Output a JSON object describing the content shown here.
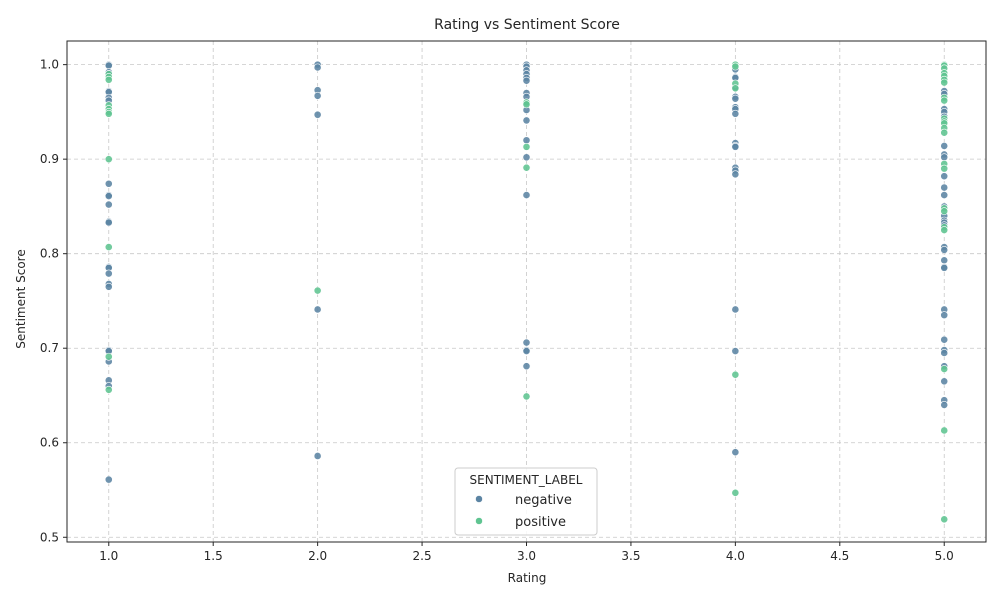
{
  "chart_data": {
    "type": "scatter",
    "title": "Rating vs Sentiment Score",
    "xlabel": "Rating",
    "ylabel": "Sentiment Score",
    "xlim": [
      0.8,
      5.2
    ],
    "ylim": [
      0.495,
      1.025
    ],
    "xticks": [
      "1.0",
      "1.5",
      "2.0",
      "2.5",
      "3.0",
      "3.5",
      "4.0",
      "4.5",
      "5.0"
    ],
    "yticks": [
      "0.5",
      "0.6",
      "0.7",
      "0.8",
      "0.9",
      "1.0"
    ],
    "grid": true,
    "legend": {
      "title": "SENTIMENT_LABEL",
      "placement": "lower-center"
    },
    "series": [
      {
        "name": "negative",
        "color": "#5b84a3",
        "points": [
          [
            1,
            1.0
          ],
          [
            1,
            0.999
          ],
          [
            1,
            0.992
          ],
          [
            1,
            0.99
          ],
          [
            1,
            0.972
          ],
          [
            1,
            0.971
          ],
          [
            1,
            0.965
          ],
          [
            1,
            0.962
          ],
          [
            1,
            0.874
          ],
          [
            1,
            0.862
          ],
          [
            1,
            0.861
          ],
          [
            1,
            0.852
          ],
          [
            1,
            0.834
          ],
          [
            1,
            0.833
          ],
          [
            1,
            0.786
          ],
          [
            1,
            0.785
          ],
          [
            1,
            0.779
          ],
          [
            1,
            0.768
          ],
          [
            1,
            0.765
          ],
          [
            1,
            0.698
          ],
          [
            1,
            0.697
          ],
          [
            1,
            0.686
          ],
          [
            1,
            0.666
          ],
          [
            1,
            0.66
          ],
          [
            1,
            0.561
          ],
          [
            2,
            1.0
          ],
          [
            2,
            0.997
          ],
          [
            2,
            0.973
          ],
          [
            2,
            0.967
          ],
          [
            2,
            0.947
          ],
          [
            2,
            0.741
          ],
          [
            2,
            0.586
          ],
          [
            3,
            1.0
          ],
          [
            3,
            0.998
          ],
          [
            3,
            0.994
          ],
          [
            3,
            0.99
          ],
          [
            3,
            0.986
          ],
          [
            3,
            0.983
          ],
          [
            3,
            0.97
          ],
          [
            3,
            0.966
          ],
          [
            3,
            0.957
          ],
          [
            3,
            0.952
          ],
          [
            3,
            0.941
          ],
          [
            3,
            0.92
          ],
          [
            3,
            0.902
          ],
          [
            3,
            0.862
          ],
          [
            3,
            0.706
          ],
          [
            3,
            0.698
          ],
          [
            3,
            0.697
          ],
          [
            3,
            0.681
          ],
          [
            4,
            0.995
          ],
          [
            4,
            0.987
          ],
          [
            4,
            0.986
          ],
          [
            4,
            0.976
          ],
          [
            4,
            0.966
          ],
          [
            4,
            0.964
          ],
          [
            4,
            0.955
          ],
          [
            4,
            0.953
          ],
          [
            4,
            0.948
          ],
          [
            4,
            0.917
          ],
          [
            4,
            0.914
          ],
          [
            4,
            0.913
          ],
          [
            4,
            0.891
          ],
          [
            4,
            0.888
          ],
          [
            4,
            0.884
          ],
          [
            4,
            0.741
          ],
          [
            4,
            0.697
          ],
          [
            4,
            0.59
          ],
          [
            5,
            0.972
          ],
          [
            5,
            0.969
          ],
          [
            5,
            0.953
          ],
          [
            5,
            0.95
          ],
          [
            5,
            0.945
          ],
          [
            5,
            0.914
          ],
          [
            5,
            0.905
          ],
          [
            5,
            0.902
          ],
          [
            5,
            0.882
          ],
          [
            5,
            0.87
          ],
          [
            5,
            0.862
          ],
          [
            5,
            0.85
          ],
          [
            5,
            0.84
          ],
          [
            5,
            0.835
          ],
          [
            5,
            0.833
          ],
          [
            5,
            0.83
          ],
          [
            5,
            0.807
          ],
          [
            5,
            0.804
          ],
          [
            5,
            0.793
          ],
          [
            5,
            0.786
          ],
          [
            5,
            0.785
          ],
          [
            5,
            0.741
          ],
          [
            5,
            0.735
          ],
          [
            5,
            0.709
          ],
          [
            5,
            0.698
          ],
          [
            5,
            0.695
          ],
          [
            5,
            0.681
          ],
          [
            5,
            0.665
          ],
          [
            5,
            0.645
          ],
          [
            5,
            0.64
          ]
        ]
      },
      {
        "name": "positive",
        "color": "#5fc491",
        "points": [
          [
            1,
            0.99
          ],
          [
            1,
            0.987
          ],
          [
            1,
            0.984
          ],
          [
            1,
            0.957
          ],
          [
            1,
            0.953
          ],
          [
            1,
            0.95
          ],
          [
            1,
            0.948
          ],
          [
            1,
            0.9
          ],
          [
            1,
            0.807
          ],
          [
            1,
            0.691
          ],
          [
            1,
            0.656
          ],
          [
            2,
            0.761
          ],
          [
            3,
            0.96
          ],
          [
            3,
            0.958
          ],
          [
            3,
            0.913
          ],
          [
            3,
            0.891
          ],
          [
            3,
            0.649
          ],
          [
            4,
            1.0
          ],
          [
            4,
            0.998
          ],
          [
            4,
            0.98
          ],
          [
            4,
            0.975
          ],
          [
            4,
            0.672
          ],
          [
            4,
            0.547
          ],
          [
            5,
            1.0
          ],
          [
            5,
            0.999
          ],
          [
            5,
            0.996
          ],
          [
            5,
            0.991
          ],
          [
            5,
            0.988
          ],
          [
            5,
            0.984
          ],
          [
            5,
            0.981
          ],
          [
            5,
            0.965
          ],
          [
            5,
            0.962
          ],
          [
            5,
            0.943
          ],
          [
            5,
            0.94
          ],
          [
            5,
            0.938
          ],
          [
            5,
            0.933
          ],
          [
            5,
            0.928
          ],
          [
            5,
            0.895
          ],
          [
            5,
            0.89
          ],
          [
            5,
            0.848
          ],
          [
            5,
            0.845
          ],
          [
            5,
            0.828
          ],
          [
            5,
            0.825
          ],
          [
            5,
            0.678
          ],
          [
            5,
            0.613
          ],
          [
            5,
            0.519
          ]
        ]
      }
    ]
  }
}
